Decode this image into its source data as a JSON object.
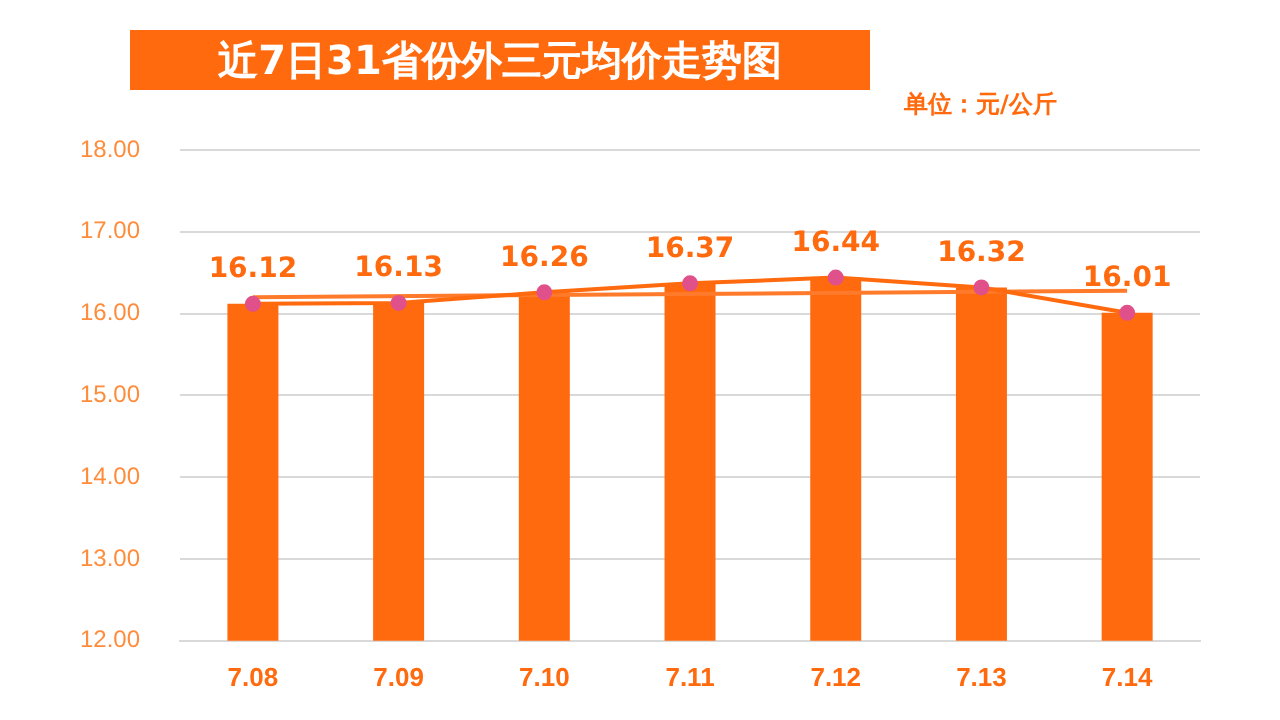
{
  "chart_data": {
    "type": "bar",
    "title": "近7日31省份外三元均价走势图",
    "annotations": [
      "单位：元/公斤"
    ],
    "categories": [
      "7.08",
      "7.09",
      "7.10",
      "7.11",
      "7.12",
      "7.13",
      "7.14"
    ],
    "series": [
      {
        "color": "#ff6a0e",
        "values": [
          16.12,
          16.13,
          16.26,
          16.37,
          16.44,
          16.32,
          16.01
        ]
      },
      {
        "type": "line",
        "color": "#ff6a0e",
        "marker": "circle",
        "colors": [
          "#e0508a",
          "#e0508a",
          "#e0508a",
          "#e0508a",
          "#e0508a",
          "#e0508a",
          "#e0508a"
        ],
        "values": [
          16.12,
          16.13,
          16.26,
          16.37,
          16.44,
          16.32,
          16.01
        ],
        "value_labels": [
          "16.12",
          "16.13",
          "16.26",
          "16.37",
          "16.44",
          "16.32",
          "16.01"
        ]
      },
      {
        "type": "line",
        "color": "#ff7a2a",
        "marker": "none",
        "x": [
          "7.08",
          "7.14"
        ],
        "values": [
          16.2,
          16.28
        ]
      }
    ],
    "ylim": [
      12,
      18
    ],
    "yticks": [
      {
        "value": 12,
        "label": "12.00"
      },
      {
        "value": 13,
        "label": "13.00"
      },
      {
        "value": 14,
        "label": "14.00"
      },
      {
        "value": 15,
        "label": "15.00"
      },
      {
        "value": 16,
        "label": "16.00"
      },
      {
        "value": 17,
        "label": "17.00"
      },
      {
        "value": 18,
        "label": "18.00"
      }
    ],
    "grid": "y",
    "legend": false
  }
}
